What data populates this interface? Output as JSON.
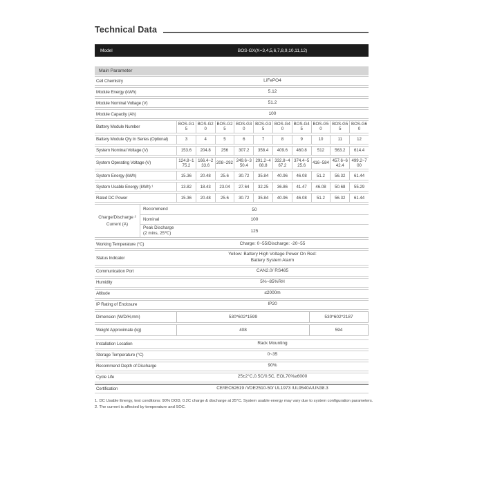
{
  "page": {
    "title": "Technical Data"
  },
  "model": {
    "label": "Model",
    "value": "BOS-GX(X=3,4,5,6,7,8,9,10,11,12)"
  },
  "sections": {
    "main_parameter": "Main Parameter"
  },
  "module_rows": [
    {
      "label": "Cell Chemistry",
      "value": "LiFePO4"
    },
    {
      "label": "Module Energy (kWh)",
      "value": "5.12"
    },
    {
      "label": "Module Nominal Voltage (V)",
      "value": "51.2"
    },
    {
      "label": "Module Capacity (Ah)",
      "value": "100"
    }
  ],
  "matrix": {
    "rows": [
      {
        "label": "Battery Module Number",
        "values": [
          "BOS-G15",
          "BOS-G20",
          "BOS-G25",
          "BOS-G30",
          "BOS-G35",
          "BOS-G40",
          "BOS-G45",
          "BOS-G50",
          "BOS-G55",
          "BOS-G60"
        ]
      },
      {
        "label": "Battery Module Qty In Series (Optional)",
        "values": [
          "3",
          "4",
          "5",
          "6",
          "7",
          "8",
          "9",
          "10",
          "11",
          "12"
        ]
      },
      {
        "label": "System Nominal Voltage (V)",
        "values": [
          "153.6",
          "204.8",
          "256",
          "307.2",
          "358.4",
          "409.6",
          "460.8",
          "512",
          "563.2",
          "614.4"
        ]
      },
      {
        "label": "System Operating  Voltage (V)",
        "values": [
          "124.8~175.2",
          "166.4~233.6",
          "208~292",
          "249.6~350.4",
          "291.2~408.8",
          "332.8~467.2",
          "374.4~525.6",
          "416~584",
          "457.6~642.4",
          "499.2~700"
        ]
      },
      {
        "label": "System Energy (kWh)",
        "values": [
          "15.36",
          "20.48",
          "25.6",
          "30.72",
          "35.84",
          "40.96",
          "46.08",
          "51.2",
          "56.32",
          "61.44"
        ]
      },
      {
        "label": "System Usable Energy (kWh) ¹",
        "values": [
          "13.82",
          "18.43",
          "23.04",
          "27.64",
          "32.25",
          "36.86",
          "41.47",
          "46.08",
          "50.68",
          "55.29"
        ]
      },
      {
        "label": "Rated DC Power",
        "values": [
          "15.36",
          "20.48",
          "25.6",
          "30.72",
          "35.84",
          "40.96",
          "46.08",
          "51.2",
          "56.32",
          "61.44"
        ]
      }
    ]
  },
  "charge": {
    "label": "Charge/Discharge ²\nCurrent (A)",
    "rows": [
      {
        "label": "Recommend",
        "value": "50",
        "tall": ""
      },
      {
        "label": "Nominal",
        "value": "100",
        "tall": ""
      },
      {
        "label": "Peak Discharge\n(2 mins, 25℃)",
        "value": "125",
        "tall": "tall"
      }
    ]
  },
  "env_rows": [
    {
      "label": "Working Temperature (°C)",
      "value": "Charge: 0~55/Discharge: -20~55"
    },
    {
      "label": "Status  Indicator",
      "value": "Yellow: Battery High Voltage Power On  Red:\nBattery System Alarm"
    },
    {
      "label": "Communication Port",
      "value": "CAN2.0/ RS485"
    },
    {
      "label": "Humidity",
      "value": "5%~85%RH"
    },
    {
      "label": "Altitude",
      "value": "≤2000m"
    },
    {
      "label": "IP Rating of Enclosure",
      "value": "IP20"
    }
  ],
  "dual_rows": [
    {
      "label": "Dimension (W/D/H,mm)",
      "value_a": "530*602*1599",
      "value_b": "530*602*2187"
    },
    {
      "label": "Weight  Approximate (kg)",
      "value_a": "408",
      "value_b": "594"
    }
  ],
  "install_rows": [
    {
      "label": "Installation  Location",
      "value": "Rack Mounting"
    },
    {
      "label": "Storage Temperature (°C)",
      "value": "0~35"
    },
    {
      "label": "Recommend Depth of Discharge",
      "value": "90%"
    },
    {
      "label": "Cycle  Life",
      "value": "25±2°C,0.5C/0.5C, EOL70%≥6000"
    }
  ],
  "certification": {
    "label": "Certification",
    "value": "CE/IEC62619 /VDE2510-50/ UL1973 /UL9540A/UN38.3"
  },
  "footnotes": [
    "1. DC Usable Energy, test conditions: 90% DOD, 0.2C charge & discharge at 25°C. System usable energy may vary due to system configuration parameters.",
    "2. The current is affected by temperature and SOC."
  ]
}
